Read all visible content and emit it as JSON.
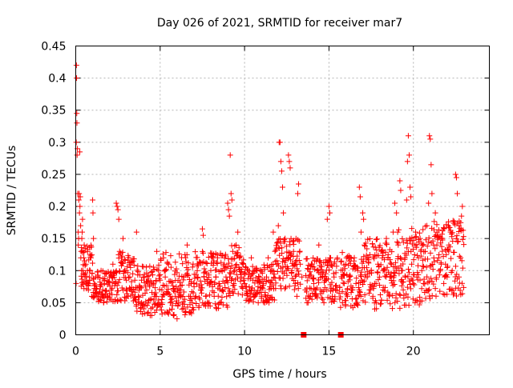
{
  "chart_data": {
    "type": "scatter",
    "title": "Day 026 of 2021, SRMTID for receiver mar7",
    "xlabel": "GPS time / hours",
    "ylabel": "SRMTID / TECUs",
    "xlim": [
      0,
      24.5
    ],
    "ylim": [
      0,
      0.45
    ],
    "x_ticks": [
      0,
      5,
      10,
      15,
      20
    ],
    "x_tick_labels": [
      "0",
      "5",
      "10",
      "15",
      "20"
    ],
    "y_ticks": [
      0,
      0.05,
      0.1,
      0.15,
      0.2,
      0.25,
      0.3,
      0.35,
      0.4,
      0.45
    ],
    "y_tick_labels": [
      "0",
      "0.05",
      "0.1",
      "0.15",
      "0.2",
      "0.25",
      "0.3",
      "0.35",
      "0.4",
      "0.45"
    ],
    "grid": true,
    "marker": "plus",
    "color": "#ff0000",
    "series": [
      {
        "name": "SRMTID",
        "points": [
          [
            0.02,
            0.08
          ],
          [
            0.03,
            0.3
          ],
          [
            0.04,
            0.42
          ],
          [
            0.05,
            0.4
          ],
          [
            0.06,
            0.345
          ],
          [
            0.07,
            0.33
          ],
          [
            0.08,
            0.28
          ],
          [
            0.1,
            0.29
          ],
          [
            0.12,
            0.22
          ],
          [
            0.14,
            0.16
          ],
          [
            0.15,
            0.14
          ],
          [
            0.17,
            0.15
          ],
          [
            0.18,
            0.21
          ],
          [
            0.2,
            0.22
          ],
          [
            0.22,
            0.19
          ],
          [
            0.24,
            0.285
          ],
          [
            0.25,
            0.2
          ],
          [
            0.27,
            0.215
          ],
          [
            0.29,
            0.17
          ],
          [
            0.3,
            0.12
          ],
          [
            0.32,
            0.13
          ],
          [
            0.34,
            0.1
          ],
          [
            0.36,
            0.15
          ],
          [
            0.38,
            0.16
          ],
          [
            0.4,
            0.18
          ],
          [
            0.42,
            0.1
          ],
          [
            0.45,
            0.095
          ],
          [
            0.48,
            0.12
          ],
          [
            0.5,
            0.14
          ],
          [
            0.55,
            0.09
          ],
          [
            0.6,
            0.11
          ],
          [
            0.65,
            0.08
          ],
          [
            0.7,
            0.13
          ],
          [
            0.75,
            0.07
          ],
          [
            0.8,
            0.09
          ],
          [
            0.85,
            0.1
          ],
          [
            0.9,
            0.12
          ],
          [
            0.95,
            0.06
          ],
          [
            1.0,
            0.21
          ],
          [
            1.02,
            0.19
          ],
          [
            1.05,
            0.15
          ],
          [
            1.1,
            0.08
          ],
          [
            1.2,
            0.065
          ],
          [
            1.3,
            0.09
          ],
          [
            1.4,
            0.055
          ],
          [
            1.5,
            0.1
          ],
          [
            1.6,
            0.07
          ],
          [
            1.7,
            0.08
          ],
          [
            1.8,
            0.095
          ],
          [
            1.9,
            0.06
          ],
          [
            2.0,
            0.09
          ],
          [
            2.1,
            0.07
          ],
          [
            2.2,
            0.11
          ],
          [
            2.3,
            0.08
          ],
          [
            2.4,
            0.205
          ],
          [
            2.45,
            0.2
          ],
          [
            2.5,
            0.195
          ],
          [
            2.55,
            0.18
          ],
          [
            2.6,
            0.13
          ],
          [
            2.7,
            0.12
          ],
          [
            2.8,
            0.15
          ],
          [
            2.9,
            0.1
          ],
          [
            3.0,
            0.085
          ],
          [
            3.1,
            0.06
          ],
          [
            3.2,
            0.09
          ],
          [
            3.3,
            0.07
          ],
          [
            3.4,
            0.115
          ],
          [
            3.5,
            0.085
          ],
          [
            3.6,
            0.16
          ],
          [
            3.7,
            0.06
          ],
          [
            3.8,
            0.075
          ],
          [
            3.9,
            0.05
          ],
          [
            4.0,
            0.09
          ],
          [
            4.1,
            0.045
          ],
          [
            4.2,
            0.07
          ],
          [
            4.3,
            0.035
          ],
          [
            4.4,
            0.055
          ],
          [
            4.5,
            0.03
          ],
          [
            4.6,
            0.08
          ],
          [
            4.7,
            0.06
          ],
          [
            4.8,
            0.13
          ],
          [
            4.9,
            0.1
          ],
          [
            5.0,
            0.085
          ],
          [
            5.1,
            0.07
          ],
          [
            5.2,
            0.12
          ],
          [
            5.3,
            0.09
          ],
          [
            5.4,
            0.065
          ],
          [
            5.5,
            0.11
          ],
          [
            5.6,
            0.05
          ],
          [
            5.7,
            0.04
          ],
          [
            5.8,
            0.03
          ],
          [
            5.9,
            0.06
          ],
          [
            6.0,
            0.025
          ],
          [
            6.1,
            0.05
          ],
          [
            6.2,
            0.07
          ],
          [
            6.3,
            0.04
          ],
          [
            6.4,
            0.09
          ],
          [
            6.5,
            0.12
          ],
          [
            6.6,
            0.14
          ],
          [
            6.7,
            0.06
          ],
          [
            6.8,
            0.035
          ],
          [
            6.9,
            0.05
          ],
          [
            7.0,
            0.08
          ],
          [
            7.1,
            0.06
          ],
          [
            7.2,
            0.1
          ],
          [
            7.3,
            0.045
          ],
          [
            7.4,
            0.07
          ],
          [
            7.5,
            0.165
          ],
          [
            7.55,
            0.155
          ],
          [
            7.6,
            0.09
          ],
          [
            7.7,
            0.06
          ],
          [
            7.8,
            0.08
          ],
          [
            7.9,
            0.05
          ],
          [
            8.0,
            0.1
          ],
          [
            8.1,
            0.075
          ],
          [
            8.2,
            0.06
          ],
          [
            8.3,
            0.09
          ],
          [
            8.4,
            0.12
          ],
          [
            8.5,
            0.08
          ],
          [
            8.6,
            0.1
          ],
          [
            8.7,
            0.07
          ],
          [
            8.8,
            0.11
          ],
          [
            8.9,
            0.09
          ],
          [
            9.0,
            0.205
          ],
          [
            9.05,
            0.195
          ],
          [
            9.1,
            0.185
          ],
          [
            9.15,
            0.28
          ],
          [
            9.2,
            0.22
          ],
          [
            9.25,
            0.21
          ],
          [
            9.3,
            0.13
          ],
          [
            9.4,
            0.1
          ],
          [
            9.5,
            0.14
          ],
          [
            9.6,
            0.16
          ],
          [
            9.7,
            0.12
          ],
          [
            9.8,
            0.09
          ],
          [
            9.9,
            0.11
          ],
          [
            10.0,
            0.08
          ],
          [
            10.1,
            0.065
          ],
          [
            10.2,
            0.1
          ],
          [
            10.3,
            0.07
          ],
          [
            10.4,
            0.12
          ],
          [
            10.5,
            0.085
          ],
          [
            10.6,
            0.06
          ],
          [
            10.7,
            0.1
          ],
          [
            10.8,
            0.075
          ],
          [
            10.9,
            0.09
          ],
          [
            11.0,
            0.06
          ],
          [
            11.1,
            0.08
          ],
          [
            11.2,
            0.05
          ],
          [
            11.3,
            0.09
          ],
          [
            11.4,
            0.12
          ],
          [
            11.5,
            0.075
          ],
          [
            11.6,
            0.1
          ],
          [
            11.7,
            0.16
          ],
          [
            11.8,
            0.13
          ],
          [
            11.9,
            0.11
          ],
          [
            12.0,
            0.17
          ],
          [
            12.05,
            0.3
          ],
          [
            12.1,
            0.3
          ],
          [
            12.15,
            0.27
          ],
          [
            12.2,
            0.255
          ],
          [
            12.25,
            0.23
          ],
          [
            12.3,
            0.19
          ],
          [
            12.4,
            0.15
          ],
          [
            12.5,
            0.12
          ],
          [
            12.6,
            0.28
          ],
          [
            12.65,
            0.27
          ],
          [
            12.7,
            0.26
          ],
          [
            12.8,
            0.1
          ],
          [
            12.9,
            0.13
          ],
          [
            13.0,
            0.08
          ],
          [
            13.1,
            0.06
          ],
          [
            13.15,
            0.22
          ],
          [
            13.2,
            0.235
          ],
          [
            13.3,
            0.11
          ],
          [
            13.4,
            0.09
          ],
          [
            13.6,
            0.07
          ],
          [
            13.7,
            0.05
          ],
          [
            13.8,
            0.09
          ],
          [
            13.9,
            0.06
          ],
          [
            14.0,
            0.11
          ],
          [
            14.1,
            0.08
          ],
          [
            14.2,
            0.06
          ],
          [
            14.3,
            0.1
          ],
          [
            14.4,
            0.14
          ],
          [
            14.5,
            0.07
          ],
          [
            14.6,
            0.09
          ],
          [
            14.7,
            0.05
          ],
          [
            14.8,
            0.085
          ],
          [
            14.9,
            0.18
          ],
          [
            15.0,
            0.2
          ],
          [
            15.05,
            0.19
          ],
          [
            15.1,
            0.12
          ],
          [
            15.2,
            0.06
          ],
          [
            15.3,
            0.09
          ],
          [
            15.4,
            0.07
          ],
          [
            15.6,
            0.065
          ],
          [
            15.8,
            0.05
          ],
          [
            15.9,
            0.08
          ],
          [
            16.0,
            0.11
          ],
          [
            16.1,
            0.06
          ],
          [
            16.2,
            0.09
          ],
          [
            16.3,
            0.045
          ],
          [
            16.4,
            0.07
          ],
          [
            16.5,
            0.12
          ],
          [
            16.6,
            0.08
          ],
          [
            16.7,
            0.1
          ],
          [
            16.8,
            0.23
          ],
          [
            16.85,
            0.215
          ],
          [
            16.9,
            0.16
          ],
          [
            17.0,
            0.19
          ],
          [
            17.05,
            0.18
          ],
          [
            17.1,
            0.14
          ],
          [
            17.2,
            0.09
          ],
          [
            17.3,
            0.12
          ],
          [
            17.4,
            0.07
          ],
          [
            17.5,
            0.1
          ],
          [
            17.6,
            0.06
          ],
          [
            17.7,
            0.08
          ],
          [
            17.8,
            0.05
          ],
          [
            17.9,
            0.11
          ],
          [
            18.0,
            0.09
          ],
          [
            18.1,
            0.13
          ],
          [
            18.2,
            0.07
          ],
          [
            18.3,
            0.1
          ],
          [
            18.4,
            0.15
          ],
          [
            18.5,
            0.12
          ],
          [
            18.6,
            0.09
          ],
          [
            18.7,
            0.11
          ],
          [
            18.8,
            0.16
          ],
          [
            18.9,
            0.205
          ],
          [
            19.0,
            0.19
          ],
          [
            19.1,
            0.14
          ],
          [
            19.2,
            0.24
          ],
          [
            19.25,
            0.225
          ],
          [
            19.3,
            0.1
          ],
          [
            19.4,
            0.07
          ],
          [
            19.5,
            0.12
          ],
          [
            19.6,
            0.21
          ],
          [
            19.65,
            0.27
          ],
          [
            19.7,
            0.31
          ],
          [
            19.75,
            0.28
          ],
          [
            19.8,
            0.23
          ],
          [
            19.85,
            0.215
          ],
          [
            19.9,
            0.11
          ],
          [
            20.0,
            0.08
          ],
          [
            20.1,
            0.05
          ],
          [
            20.2,
            0.09
          ],
          [
            20.3,
            0.12
          ],
          [
            20.4,
            0.15
          ],
          [
            20.5,
            0.1
          ],
          [
            20.6,
            0.08
          ],
          [
            20.7,
            0.13
          ],
          [
            20.8,
            0.17
          ],
          [
            20.9,
            0.205
          ],
          [
            20.95,
            0.31
          ],
          [
            21.0,
            0.305
          ],
          [
            21.05,
            0.265
          ],
          [
            21.1,
            0.22
          ],
          [
            21.2,
            0.14
          ],
          [
            21.3,
            0.19
          ],
          [
            21.4,
            0.16
          ],
          [
            21.5,
            0.12
          ],
          [
            21.6,
            0.1
          ],
          [
            21.7,
            0.15
          ],
          [
            21.8,
            0.08
          ],
          [
            21.9,
            0.11
          ],
          [
            22.0,
            0.09
          ],
          [
            22.1,
            0.14
          ],
          [
            22.2,
            0.16
          ],
          [
            22.3,
            0.1
          ],
          [
            22.4,
            0.065
          ],
          [
            22.5,
            0.25
          ],
          [
            22.55,
            0.245
          ],
          [
            22.6,
            0.22
          ],
          [
            22.7,
            0.09
          ],
          [
            22.8,
            0.12
          ],
          [
            22.85,
            0.185
          ],
          [
            22.9,
            0.2
          ]
        ]
      }
    ],
    "band_series": [
      {
        "from": 0.3,
        "to": 1.0,
        "lo": 0.07,
        "hi": 0.14
      },
      {
        "from": 1.0,
        "to": 2.5,
        "lo": 0.05,
        "hi": 0.1
      },
      {
        "from": 2.5,
        "to": 3.5,
        "lo": 0.05,
        "hi": 0.13
      },
      {
        "from": 3.5,
        "to": 5.0,
        "lo": 0.03,
        "hi": 0.11
      },
      {
        "from": 5.0,
        "to": 7.0,
        "lo": 0.03,
        "hi": 0.13
      },
      {
        "from": 7.0,
        "to": 9.0,
        "lo": 0.04,
        "hi": 0.13
      },
      {
        "from": 9.0,
        "to": 10.0,
        "lo": 0.06,
        "hi": 0.14
      },
      {
        "from": 10.0,
        "to": 11.8,
        "lo": 0.05,
        "hi": 0.11
      },
      {
        "from": 11.8,
        "to": 13.3,
        "lo": 0.07,
        "hi": 0.15
      },
      {
        "from": 13.6,
        "to": 15.5,
        "lo": 0.05,
        "hi": 0.12
      },
      {
        "from": 15.6,
        "to": 17.0,
        "lo": 0.04,
        "hi": 0.13
      },
      {
        "from": 17.0,
        "to": 19.0,
        "lo": 0.04,
        "hi": 0.15
      },
      {
        "from": 19.0,
        "to": 21.0,
        "lo": 0.04,
        "hi": 0.17
      },
      {
        "from": 21.0,
        "to": 23.0,
        "lo": 0.06,
        "hi": 0.18
      }
    ],
    "axis_markers": [
      {
        "x": 13.5,
        "y": 0,
        "shape": "square"
      },
      {
        "x": 15.7,
        "y": 0,
        "shape": "square"
      }
    ]
  }
}
